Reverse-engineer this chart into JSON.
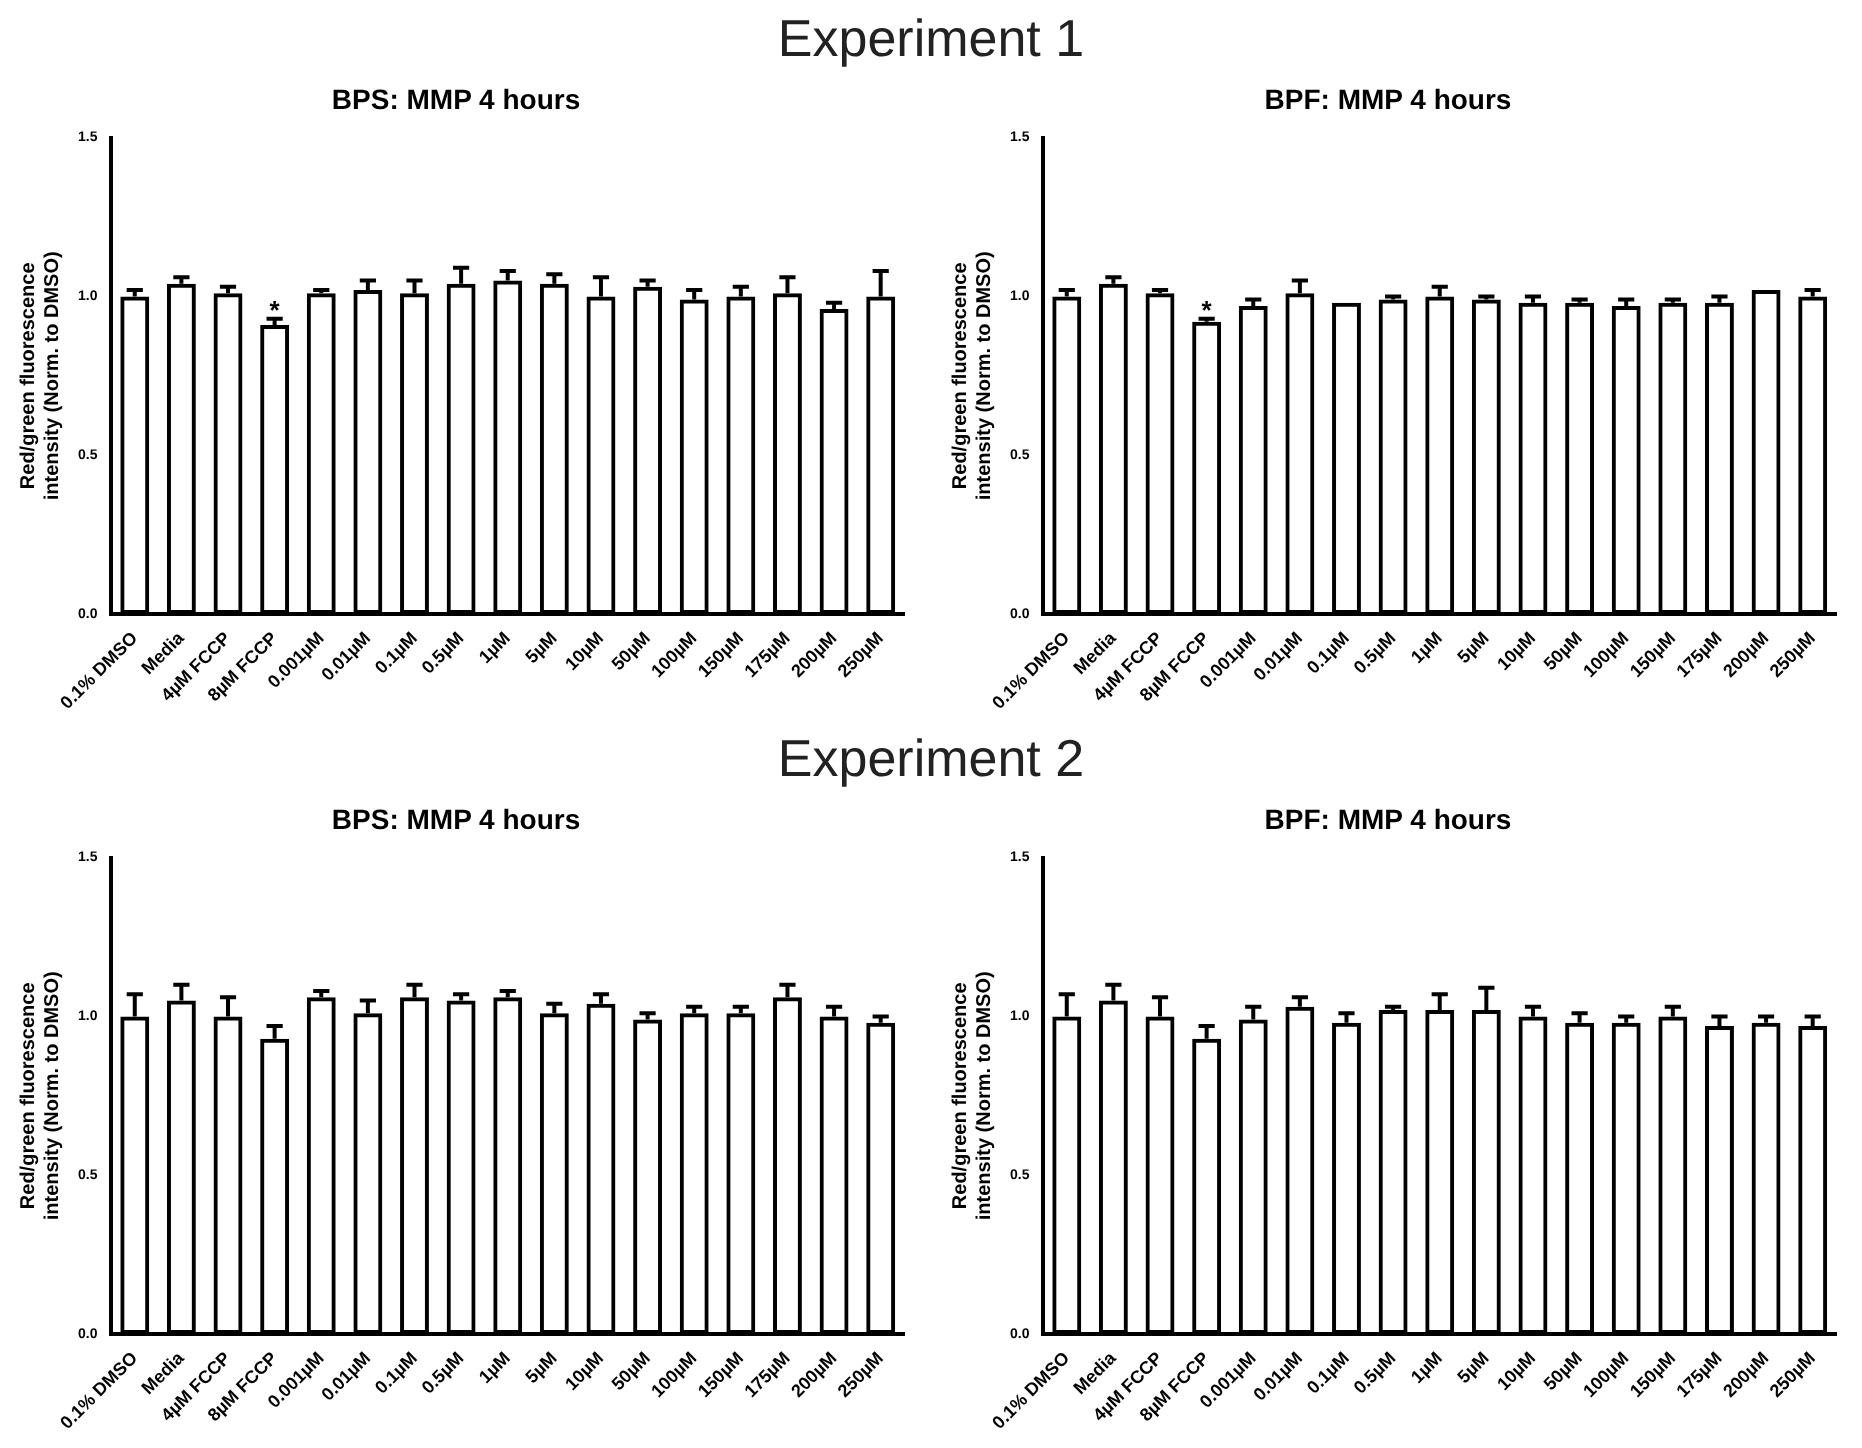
{
  "chart_data": [
    {
      "type": "bar",
      "title": "BPS: MMP 4 hours",
      "ylabel": "Red/green fluorescence\nintensity (Norm. to DMSO)",
      "annotations": [
        "Experiment 1",
        {
          "text": "*",
          "x": "8µM FCCP",
          "y": 0.95
        }
      ],
      "categories": [
        "0.1% DMSO",
        "Media",
        "4µM FCCP",
        "8µM FCCP",
        "0.001µM",
        "0.01µM",
        "0.1µM",
        "0.5µM",
        "1µM",
        "5µM",
        "10µM",
        "50µM",
        "100µM",
        "150µM",
        "175µM",
        "200µM",
        "250µM"
      ],
      "values": [
        1.0,
        1.04,
        1.01,
        0.91,
        1.01,
        1.02,
        1.01,
        1.04,
        1.05,
        1.04,
        1.0,
        1.03,
        0.99,
        1.0,
        1.01,
        0.96,
        1.0
      ],
      "errors": [
        [
          1.0,
          1.02
        ],
        [
          1.04,
          1.06
        ],
        [
          1.01,
          1.03
        ],
        [
          0.91,
          0.93
        ],
        [
          1.01,
          1.02
        ],
        [
          1.02,
          1.05
        ],
        [
          1.01,
          1.05
        ],
        [
          1.04,
          1.09
        ],
        [
          1.05,
          1.08
        ],
        [
          1.04,
          1.07
        ],
        [
          1.0,
          1.06
        ],
        [
          1.03,
          1.05
        ],
        [
          0.99,
          1.02
        ],
        [
          1.0,
          1.03
        ],
        [
          1.01,
          1.06
        ],
        [
          0.96,
          0.98
        ],
        [
          1.0,
          1.08
        ]
      ],
      "color": "#000000",
      "ylim": [
        0,
        1.5
      ],
      "yticks": [
        {
          "value": 0,
          "label": "0.0"
        },
        {
          "value": 0.5,
          "label": "0.5"
        },
        {
          "value": 1,
          "label": "1.0"
        },
        {
          "value": 1.5,
          "label": "1.5"
        }
      ],
      "grid": false,
      "legend": false
    },
    {
      "type": "bar",
      "title": "BPF: MMP 4 hours",
      "ylabel": "Red/green fluorescence\nintensity (Norm. to DMSO)",
      "annotations": [
        {
          "text": "*",
          "x": "8µM FCCP",
          "y": 0.95
        }
      ],
      "categories": [
        "0.1% DMSO",
        "Media",
        "4µM FCCP",
        "8µM FCCP",
        "0.001µM",
        "0.01µM",
        "0.1µM",
        "0.5µM",
        "1µM",
        "5µM",
        "10µM",
        "50µM",
        "100µM",
        "150µM",
        "175µM",
        "200µM",
        "250µM"
      ],
      "values": [
        1.0,
        1.04,
        1.01,
        0.92,
        0.97,
        1.01,
        0.98,
        0.99,
        1.0,
        0.99,
        0.98,
        0.98,
        0.97,
        0.98,
        0.98,
        1.02,
        1.0
      ],
      "errors": [
        [
          1.0,
          1.02
        ],
        [
          1.04,
          1.06
        ],
        [
          1.01,
          1.02
        ],
        [
          0.92,
          0.93
        ],
        [
          0.97,
          0.99
        ],
        [
          1.01,
          1.05
        ],
        [
          0.98,
          0.98
        ],
        [
          0.99,
          1.0
        ],
        [
          1.0,
          1.03
        ],
        [
          0.99,
          1.0
        ],
        [
          0.98,
          1.0
        ],
        [
          0.98,
          0.99
        ],
        [
          0.97,
          0.99
        ],
        [
          0.98,
          0.99
        ],
        [
          0.98,
          1.0
        ],
        [
          1.02,
          1.02
        ],
        [
          1.0,
          1.02
        ]
      ],
      "color": "#000000",
      "ylim": [
        0,
        1.5
      ],
      "yticks": [
        {
          "value": 0,
          "label": "0.0"
        },
        {
          "value": 0.5,
          "label": "0.5"
        },
        {
          "value": 1,
          "label": "1.0"
        },
        {
          "value": 1.5,
          "label": "1.5"
        }
      ],
      "grid": false,
      "legend": false
    },
    {
      "type": "bar",
      "title": "BPS: MMP 4 hours",
      "ylabel": "Red/green fluorescence\nintensity (Norm. to DMSO)",
      "annotations": [
        "Experiment 2"
      ],
      "categories": [
        "0.1% DMSO",
        "Media",
        "4µM FCCP",
        "8µM FCCP",
        "0.001µM",
        "0.01µM",
        "0.1µM",
        "0.5µM",
        "1µM",
        "5µM",
        "10µM",
        "50µM",
        "100µM",
        "150µM",
        "175µM",
        "200µM",
        "250µM"
      ],
      "values": [
        1.0,
        1.05,
        1.0,
        0.93,
        1.06,
        1.01,
        1.06,
        1.05,
        1.06,
        1.01,
        1.04,
        0.99,
        1.01,
        1.01,
        1.06,
        1.0,
        0.98
      ],
      "errors": [
        [
          1.0,
          1.07
        ],
        [
          1.05,
          1.1
        ],
        [
          1.0,
          1.06
        ],
        [
          0.93,
          0.97
        ],
        [
          1.06,
          1.08
        ],
        [
          1.01,
          1.05
        ],
        [
          1.06,
          1.1
        ],
        [
          1.05,
          1.07
        ],
        [
          1.06,
          1.08
        ],
        [
          1.01,
          1.04
        ],
        [
          1.04,
          1.07
        ],
        [
          0.99,
          1.01
        ],
        [
          1.01,
          1.03
        ],
        [
          1.01,
          1.03
        ],
        [
          1.06,
          1.1
        ],
        [
          1.0,
          1.03
        ],
        [
          0.98,
          1.0
        ]
      ],
      "color": "#000000",
      "ylim": [
        0,
        1.5
      ],
      "yticks": [
        {
          "value": 0,
          "label": "0.0"
        },
        {
          "value": 0.5,
          "label": "0.5"
        },
        {
          "value": 1,
          "label": "1.0"
        },
        {
          "value": 1.5,
          "label": "1.5"
        }
      ],
      "grid": false,
      "legend": false
    },
    {
      "type": "bar",
      "title": "BPF: MMP 4 hours",
      "ylabel": "Red/green fluorescence\nintensity (Norm. to DMSO)",
      "categories": [
        "0.1% DMSO",
        "Media",
        "4µM FCCP",
        "8µM FCCP",
        "0.001µM",
        "0.01µM",
        "0.1µM",
        "0.5µM",
        "1µM",
        "5µM",
        "10µM",
        "50µM",
        "100µM",
        "150µM",
        "175µM",
        "200µM",
        "250µM"
      ],
      "values": [
        1.0,
        1.05,
        1.0,
        0.93,
        0.99,
        1.03,
        0.98,
        1.02,
        1.02,
        1.02,
        1.0,
        0.98,
        0.98,
        1.0,
        0.97,
        0.98,
        0.97
      ],
      "errors": [
        [
          1.0,
          1.07
        ],
        [
          1.05,
          1.1
        ],
        [
          1.0,
          1.06
        ],
        [
          0.93,
          0.97
        ],
        [
          0.99,
          1.03
        ],
        [
          1.03,
          1.06
        ],
        [
          0.98,
          1.01
        ],
        [
          1.02,
          1.03
        ],
        [
          1.02,
          1.07
        ],
        [
          1.02,
          1.09
        ],
        [
          1.0,
          1.03
        ],
        [
          0.98,
          1.01
        ],
        [
          0.98,
          1.0
        ],
        [
          1.0,
          1.03
        ],
        [
          0.97,
          1.0
        ],
        [
          0.98,
          1.0
        ],
        [
          0.97,
          1.0
        ]
      ],
      "color": "#000000",
      "ylim": [
        0,
        1.5
      ],
      "yticks": [
        {
          "value": 0,
          "label": "0.0"
        },
        {
          "value": 0.5,
          "label": "0.5"
        },
        {
          "value": 1,
          "label": "1.0"
        },
        {
          "value": 1.5,
          "label": "1.5"
        }
      ],
      "grid": false,
      "legend": false
    }
  ]
}
